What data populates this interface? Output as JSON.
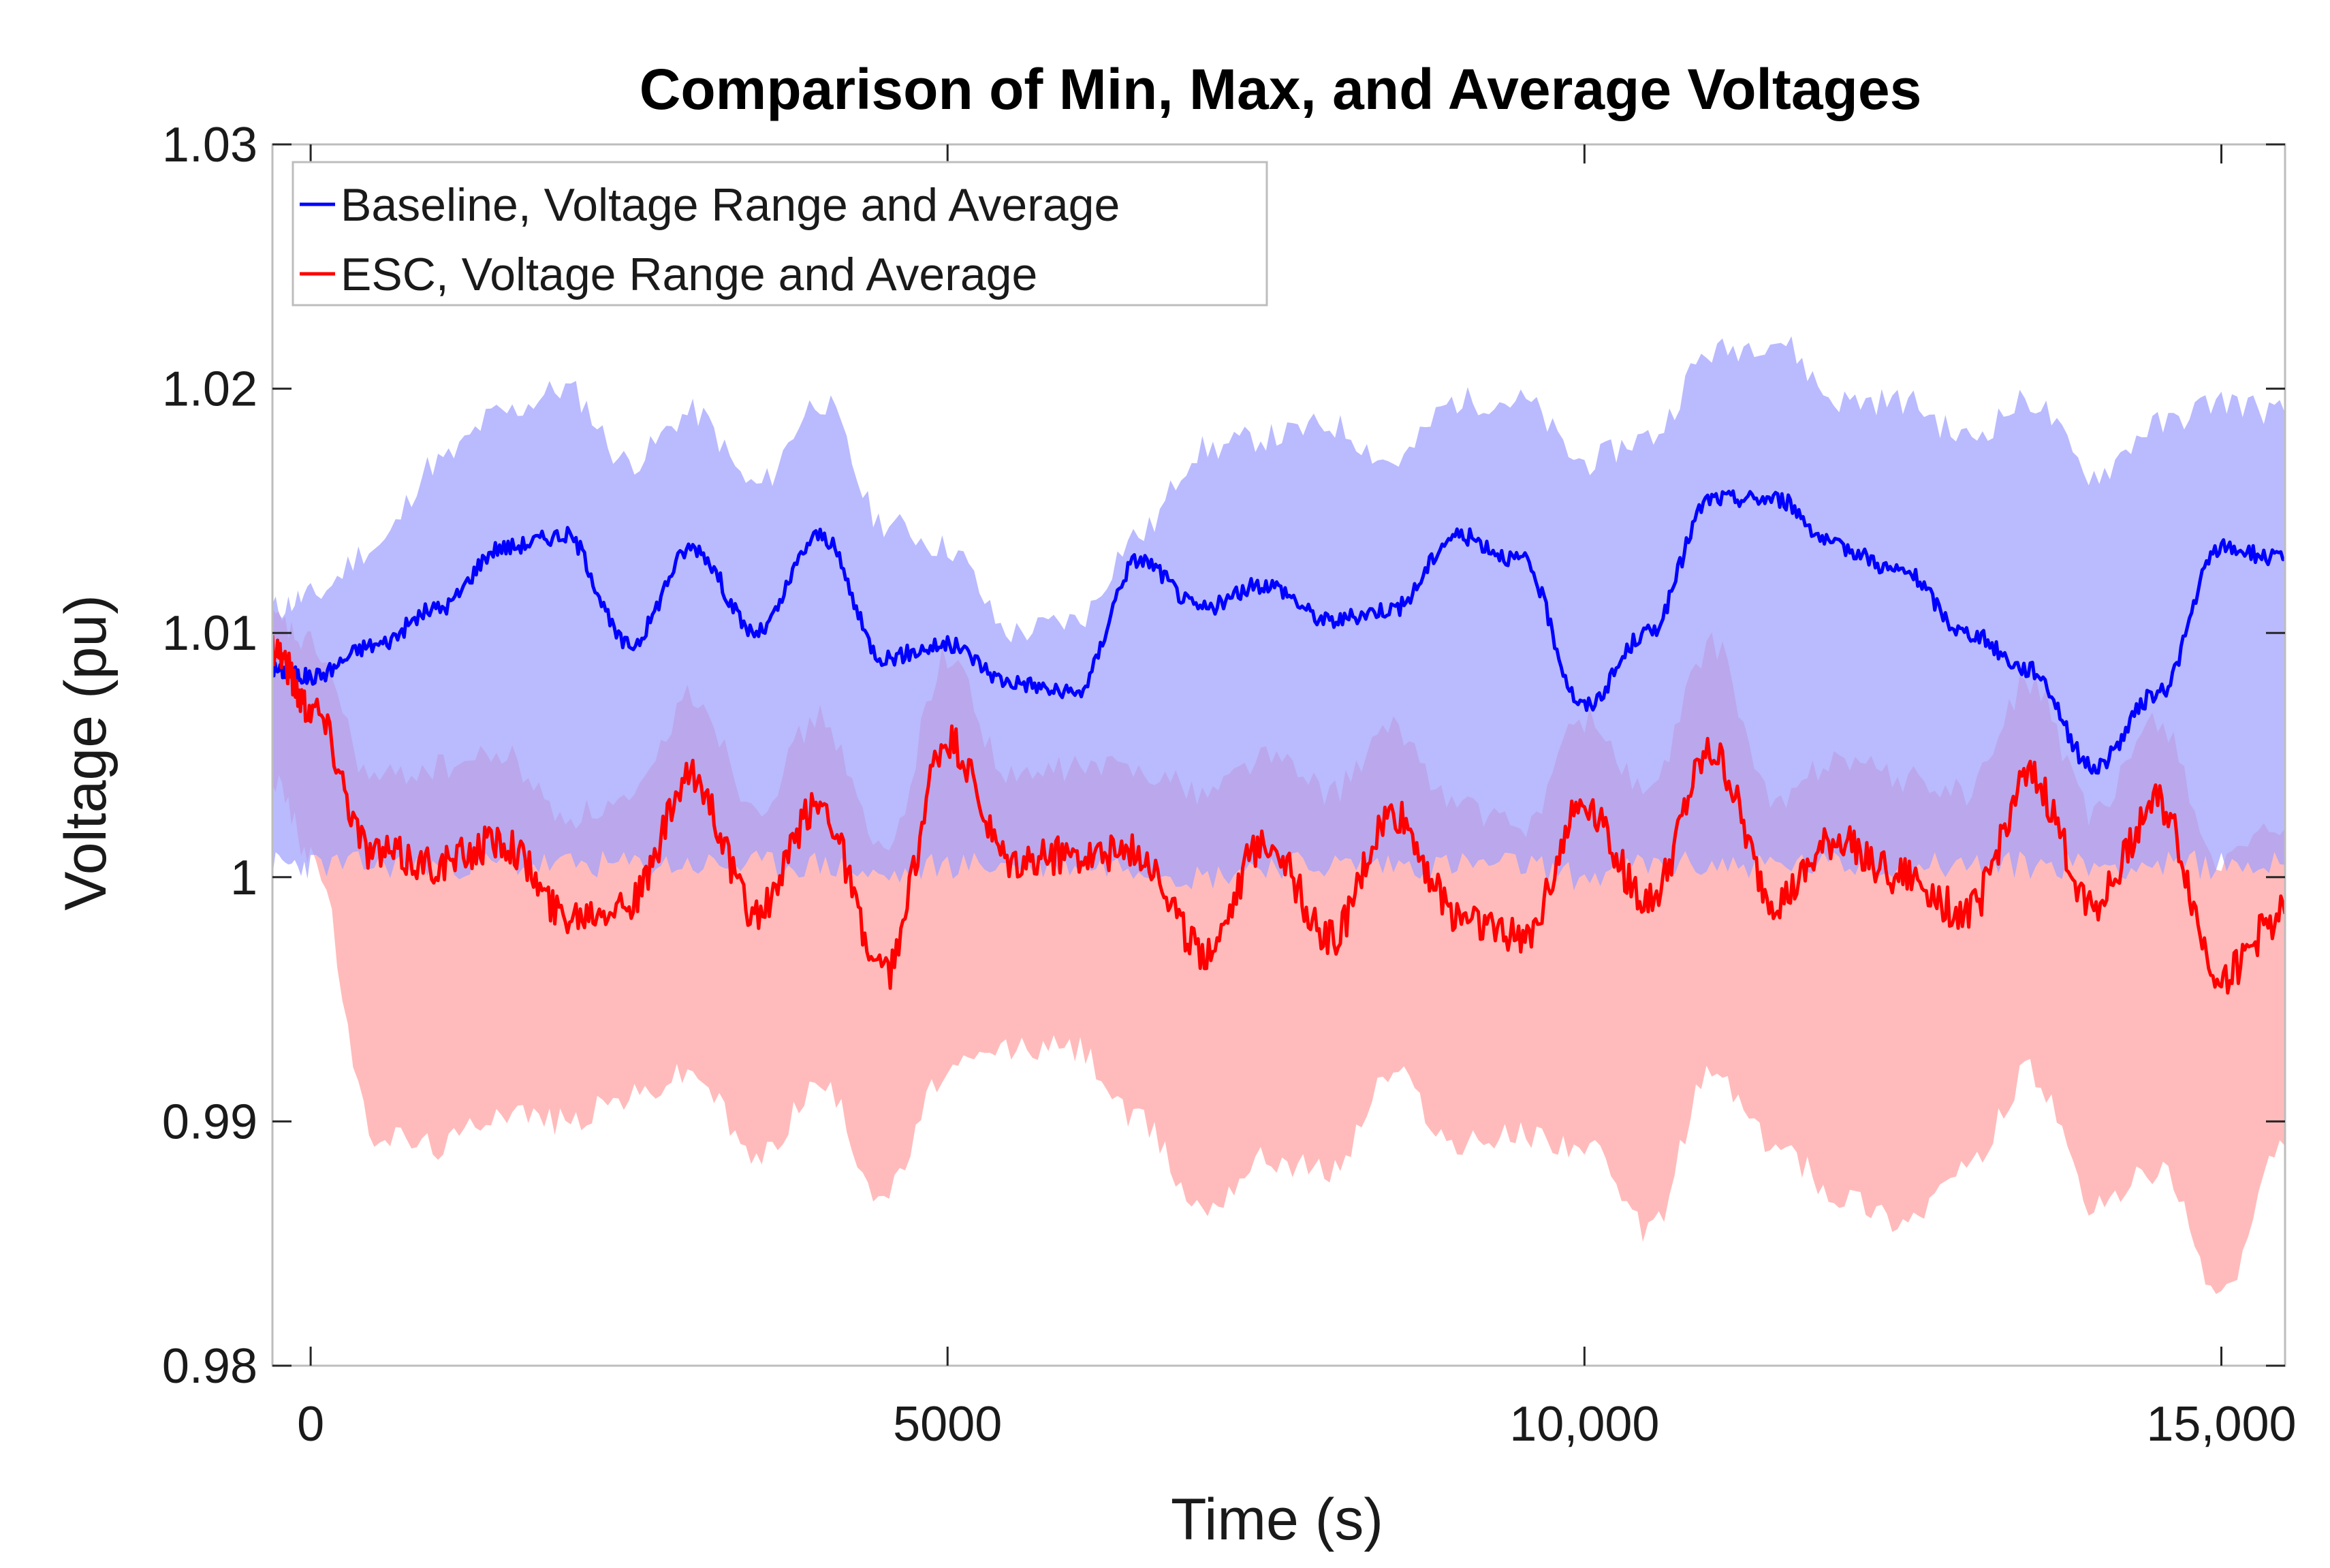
{
  "chart_data": {
    "type": "area",
    "title": "Comparison of Min, Max, and Average Voltages",
    "xlabel": "Time (s)",
    "ylabel": "Voltage (pu)",
    "xlim": [
      -300,
      15500
    ],
    "ylim": [
      0.98,
      1.03
    ],
    "xticks": [
      0,
      5000,
      10000,
      15000
    ],
    "xtick_labels": [
      "0",
      "5000",
      "10,000",
      "15,000"
    ],
    "yticks": [
      0.98,
      0.99,
      1.0,
      1.01,
      1.02,
      1.03
    ],
    "ytick_labels": [
      "0.98",
      "0.99",
      "1",
      "1.01",
      "1.02",
      "1.03"
    ],
    "legend_position": "top-left",
    "x": [
      -300,
      0,
      500,
      1000,
      1500,
      2000,
      2500,
      3000,
      3500,
      4000,
      4500,
      5000,
      5500,
      6000,
      6500,
      7000,
      7500,
      8000,
      8500,
      9000,
      9500,
      10000,
      10500,
      11000,
      11500,
      12000,
      12500,
      13000,
      13500,
      14000,
      14500,
      15000,
      15500
    ],
    "series": [
      {
        "name": "Baseline, Voltage Range and Average",
        "color": "#0000ff",
        "band_color": "#a0a0ff",
        "avg": [
          1.0085,
          1.0082,
          1.0095,
          1.011,
          1.0135,
          1.014,
          1.0095,
          1.0135,
          1.01,
          1.014,
          1.009,
          1.0095,
          1.008,
          1.0075,
          1.013,
          1.011,
          1.012,
          1.0105,
          1.011,
          1.014,
          1.013,
          1.007,
          1.01,
          1.0155,
          1.0155,
          1.0135,
          1.0125,
          1.01,
          1.0085,
          1.0045,
          1.0075,
          1.0135,
          1.013
        ],
        "max": [
          1.011,
          1.0115,
          1.0135,
          1.017,
          1.019,
          1.02,
          1.017,
          1.019,
          1.016,
          1.0195,
          1.0145,
          1.0135,
          1.01,
          1.0105,
          1.014,
          1.0175,
          1.018,
          1.0185,
          1.017,
          1.0195,
          1.0195,
          1.017,
          1.018,
          1.0215,
          1.022,
          1.0195,
          1.0195,
          1.018,
          1.0195,
          1.0165,
          1.0185,
          1.0195,
          1.019
        ],
        "min": [
          1.0005,
          1.0005,
          1.0005,
          1.0005,
          1.0005,
          1.0005,
          1.0005,
          1.0005,
          1.0005,
          1.0005,
          1.0,
          1.0005,
          1.0005,
          1.0005,
          1.0005,
          1.0,
          1.0005,
          1.0005,
          1.0005,
          1.0005,
          1.0005,
          1.0,
          1.0005,
          1.0005,
          1.0005,
          1.0005,
          1.0005,
          1.0005,
          1.0005,
          1.0005,
          1.0005,
          1.0005,
          1.0005
        ]
      },
      {
        "name": "ESC, Voltage Range and Average",
        "color": "#ff0000",
        "band_color": "#ffb4b4",
        "avg": [
          1.0095,
          1.007,
          1.001,
          1.0005,
          1.0015,
          0.9985,
          0.999,
          1.004,
          0.9985,
          1.003,
          0.996,
          1.0055,
          1.0005,
          1.001,
          1.001,
          0.997,
          1.0015,
          0.9975,
          1.0025,
          0.9985,
          0.9975,
          1.003,
          0.999,
          1.005,
          0.999,
          1.0015,
          1.0,
          0.9985,
          1.004,
          0.999,
          1.003,
          0.996,
          0.9985
        ],
        "max": [
          1.0105,
          1.0095,
          1.004,
          1.0045,
          1.005,
          1.0025,
          1.003,
          1.0075,
          1.003,
          1.0065,
          1.001,
          1.009,
          1.004,
          1.0045,
          1.0045,
          1.0035,
          1.005,
          1.0035,
          1.006,
          1.003,
          1.002,
          1.0065,
          1.0035,
          1.0095,
          1.003,
          1.005,
          1.004,
          1.0035,
          1.008,
          1.0025,
          1.0065,
          1.0005,
          1.002
        ],
        "min": [
          1.004,
          1.001,
          0.9895,
          0.989,
          0.9905,
          0.99,
          0.991,
          0.992,
          0.9885,
          0.9915,
          0.987,
          0.992,
          0.993,
          0.993,
          0.99,
          0.9865,
          0.9885,
          0.988,
          0.992,
          0.989,
          0.9895,
          0.989,
          0.9855,
          0.992,
          0.989,
          0.987,
          0.986,
          0.988,
          0.992,
          0.9865,
          0.988,
          0.983,
          0.989
        ]
      }
    ]
  }
}
